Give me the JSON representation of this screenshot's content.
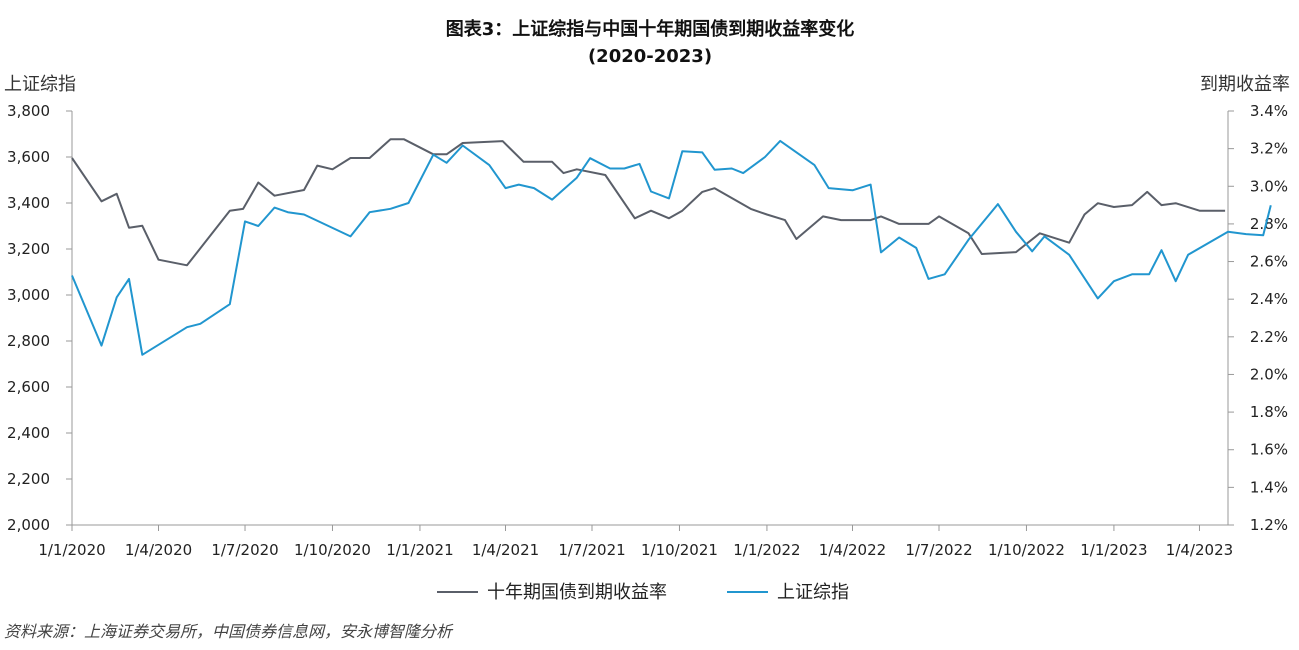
{
  "chart_data": {
    "type": "line",
    "title": "图表3：上证综指与中国十年期国债到期收益率变化",
    "subtitle": "(2020-2023)",
    "ylabel_left": "上证综指",
    "ylabel_right": "到期收益率",
    "source": "资料来源：上海证券交易所，中国债券信息网，安永博智隆分析",
    "x_ticks": [
      "1/1/2020",
      "1/4/2020",
      "1/7/2020",
      "1/10/2020",
      "1/1/2021",
      "1/4/2021",
      "1/7/2021",
      "1/10/2021",
      "1/1/2022",
      "1/4/2022",
      "1/7/2022",
      "1/10/2022",
      "1/1/2023",
      "1/4/2023"
    ],
    "xlim": [
      "2020-01-01",
      "2023-05-01"
    ],
    "y_left": {
      "ticks": [
        "2,000",
        "2,200",
        "2,400",
        "2,600",
        "2,800",
        "3,000",
        "3,200",
        "3,400",
        "3,600",
        "3,800"
      ],
      "ylim": [
        2000,
        3800
      ]
    },
    "y_right": {
      "ticks": [
        "1.2%",
        "1.4%",
        "1.6%",
        "1.8%",
        "2.0%",
        "2.2%",
        "2.4%",
        "2.6%",
        "2.8%",
        "3.0%",
        "3.2%",
        "3.4%"
      ],
      "ylim": [
        1.2,
        3.4
      ]
    },
    "legend_position": "bottom-center",
    "series": [
      {
        "name": "十年期国债到期收益率",
        "axis": "right",
        "color": "#5a5f69",
        "points": [
          [
            "2020-01-01",
            3.15
          ],
          [
            "2020-02-01",
            2.92
          ],
          [
            "2020-02-17",
            2.96
          ],
          [
            "2020-03-01",
            2.78
          ],
          [
            "2020-03-15",
            2.79
          ],
          [
            "2020-04-01",
            2.61
          ],
          [
            "2020-05-01",
            2.58
          ],
          [
            "2020-06-15",
            2.87
          ],
          [
            "2020-06-29",
            2.88
          ],
          [
            "2020-07-15",
            3.02
          ],
          [
            "2020-08-01",
            2.95
          ],
          [
            "2020-09-01",
            2.98
          ],
          [
            "2020-09-15",
            3.11
          ],
          [
            "2020-10-01",
            3.09
          ],
          [
            "2020-10-20",
            3.15
          ],
          [
            "2020-11-09",
            3.15
          ],
          [
            "2020-12-01",
            3.25
          ],
          [
            "2020-12-15",
            3.25
          ],
          [
            "2021-01-15",
            3.17
          ],
          [
            "2021-01-29",
            3.17
          ],
          [
            "2021-02-15",
            3.23
          ],
          [
            "2021-03-29",
            3.24
          ],
          [
            "2021-04-20",
            3.13
          ],
          [
            "2021-05-20",
            3.13
          ],
          [
            "2021-06-01",
            3.07
          ],
          [
            "2021-06-15",
            3.09
          ],
          [
            "2021-07-15",
            3.06
          ],
          [
            "2021-08-15",
            2.83
          ],
          [
            "2021-09-01",
            2.87
          ],
          [
            "2021-09-20",
            2.83
          ],
          [
            "2021-10-04",
            2.87
          ],
          [
            "2021-10-25",
            2.97
          ],
          [
            "2021-11-07",
            2.99
          ],
          [
            "2021-12-15",
            2.88
          ],
          [
            "2022-01-01",
            2.85
          ],
          [
            "2022-01-20",
            2.82
          ],
          [
            "2022-02-01",
            2.72
          ],
          [
            "2022-03-01",
            2.84
          ],
          [
            "2022-03-20",
            2.82
          ],
          [
            "2022-04-20",
            2.82
          ],
          [
            "2022-05-01",
            2.84
          ],
          [
            "2022-05-20",
            2.8
          ],
          [
            "2022-06-20",
            2.8
          ],
          [
            "2022-07-01",
            2.84
          ],
          [
            "2022-08-01",
            2.75
          ],
          [
            "2022-08-15",
            2.64
          ],
          [
            "2022-09-20",
            2.65
          ],
          [
            "2022-10-15",
            2.75
          ],
          [
            "2022-11-15",
            2.7
          ],
          [
            "2022-12-01",
            2.85
          ],
          [
            "2022-12-15",
            2.91
          ],
          [
            "2023-01-01",
            2.89
          ],
          [
            "2023-01-20",
            2.9
          ],
          [
            "2023-02-05",
            2.97
          ],
          [
            "2023-02-20",
            2.9
          ],
          [
            "2023-03-07",
            2.91
          ],
          [
            "2023-04-01",
            2.87
          ],
          [
            "2023-04-28",
            2.87
          ]
        ]
      },
      {
        "name": "上证综指",
        "axis": "left",
        "color": "#2196cf",
        "points": [
          [
            "2020-01-01",
            3085
          ],
          [
            "2020-02-01",
            2780
          ],
          [
            "2020-02-17",
            2990
          ],
          [
            "2020-03-01",
            3070
          ],
          [
            "2020-03-15",
            2740
          ],
          [
            "2020-05-01",
            2860
          ],
          [
            "2020-05-15",
            2875
          ],
          [
            "2020-06-15",
            2960
          ],
          [
            "2020-07-01",
            3320
          ],
          [
            "2020-07-15",
            3300
          ],
          [
            "2020-08-01",
            3380
          ],
          [
            "2020-08-15",
            3360
          ],
          [
            "2020-09-01",
            3350
          ],
          [
            "2020-10-20",
            3255
          ],
          [
            "2020-11-09",
            3360
          ],
          [
            "2020-12-01",
            3375
          ],
          [
            "2020-12-20",
            3400
          ],
          [
            "2021-01-15",
            3610
          ],
          [
            "2021-01-29",
            3575
          ],
          [
            "2021-02-15",
            3650
          ],
          [
            "2021-03-15",
            3565
          ],
          [
            "2021-04-01",
            3465
          ],
          [
            "2021-04-15",
            3480
          ],
          [
            "2021-05-01",
            3465
          ],
          [
            "2021-05-20",
            3415
          ],
          [
            "2021-06-15",
            3510
          ],
          [
            "2021-06-29",
            3595
          ],
          [
            "2021-07-20",
            3550
          ],
          [
            "2021-08-04",
            3550
          ],
          [
            "2021-08-20",
            3570
          ],
          [
            "2021-09-01",
            3450
          ],
          [
            "2021-09-20",
            3420
          ],
          [
            "2021-10-04",
            3625
          ],
          [
            "2021-10-25",
            3620
          ],
          [
            "2021-11-07",
            3545
          ],
          [
            "2021-11-25",
            3550
          ],
          [
            "2021-12-07",
            3530
          ],
          [
            "2021-12-30",
            3600
          ],
          [
            "2022-01-15",
            3670
          ],
          [
            "2022-02-20",
            3565
          ],
          [
            "2022-03-07",
            3465
          ],
          [
            "2022-04-01",
            3455
          ],
          [
            "2022-04-20",
            3480
          ],
          [
            "2022-05-01",
            3185
          ],
          [
            "2022-05-20",
            3250
          ],
          [
            "2022-06-07",
            3205
          ],
          [
            "2022-06-20",
            3070
          ],
          [
            "2022-07-07",
            3090
          ],
          [
            "2022-08-01",
            3240
          ],
          [
            "2022-09-01",
            3395
          ],
          [
            "2022-09-20",
            3275
          ],
          [
            "2022-10-07",
            3190
          ],
          [
            "2022-10-20",
            3255
          ],
          [
            "2022-11-15",
            3175
          ],
          [
            "2022-12-15",
            2985
          ],
          [
            "2023-01-01",
            3060
          ],
          [
            "2023-01-20",
            3090
          ],
          [
            "2023-02-07",
            3090
          ],
          [
            "2023-02-20",
            3195
          ],
          [
            "2023-03-07",
            3060
          ],
          [
            "2023-03-20",
            3175
          ],
          [
            "2023-05-01",
            3275
          ],
          [
            "2023-05-20",
            3265
          ],
          [
            "2023-06-07",
            3260
          ],
          [
            "2023-06-15",
            3390
          ]
        ]
      }
    ]
  }
}
